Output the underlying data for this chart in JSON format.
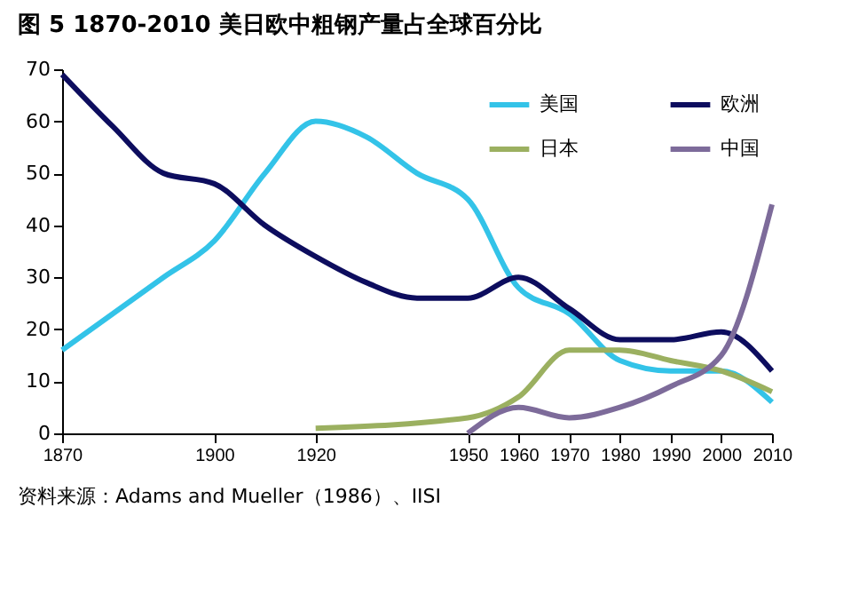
{
  "chart_data": {
    "type": "line",
    "title": "图 5 1870-2010 美日欧中粗钢产量占全球百分比",
    "annotations": [
      "资料来源：Adams and Mueller（1986）、IISI"
    ],
    "series": [
      {
        "name": "美国",
        "color": "#33c3e8",
        "x": [
          1870,
          1880,
          1890,
          1900,
          1910,
          1920,
          1930,
          1940,
          1950,
          1960,
          1970,
          1980,
          1990,
          2000,
          2010
        ],
        "values": [
          16,
          23,
          30,
          37,
          50,
          60,
          57,
          50,
          45,
          28,
          23,
          14,
          12,
          12,
          6
        ]
      },
      {
        "name": "日本",
        "color": "#9bb060",
        "x": [
          1920,
          1950,
          1960,
          1970,
          1980,
          1990,
          2000,
          2010
        ],
        "values": [
          1,
          3,
          7,
          16,
          16,
          14,
          12,
          8
        ]
      },
      {
        "name": "欧洲",
        "color": "#0d0d5e",
        "x": [
          1870,
          1880,
          1890,
          1900,
          1910,
          1920,
          1930,
          1940,
          1950,
          1960,
          1970,
          1980,
          1990,
          2000,
          2010
        ],
        "values": [
          69,
          59,
          50,
          48,
          40,
          34,
          29,
          26,
          26,
          30,
          24,
          18,
          18,
          19.5,
          12
        ]
      },
      {
        "name": "中国",
        "color": "#7d6b9a",
        "x": [
          1950,
          1960,
          1970,
          1980,
          1990,
          2000,
          2010
        ],
        "values": [
          0,
          5,
          3,
          5,
          9,
          15,
          44
        ]
      }
    ],
    "xlim": [
      1870,
      2010
    ],
    "xticks": [
      1870,
      1900,
      1920,
      1950,
      1960,
      1970,
      1980,
      1990,
      2000,
      2010
    ],
    "ylim": [
      0,
      70
    ],
    "yticks": [
      0,
      10,
      20,
      30,
      40,
      50,
      60,
      70
    ],
    "grid": false,
    "legend": "top right",
    "marker": "none",
    "line_style": "solid"
  }
}
